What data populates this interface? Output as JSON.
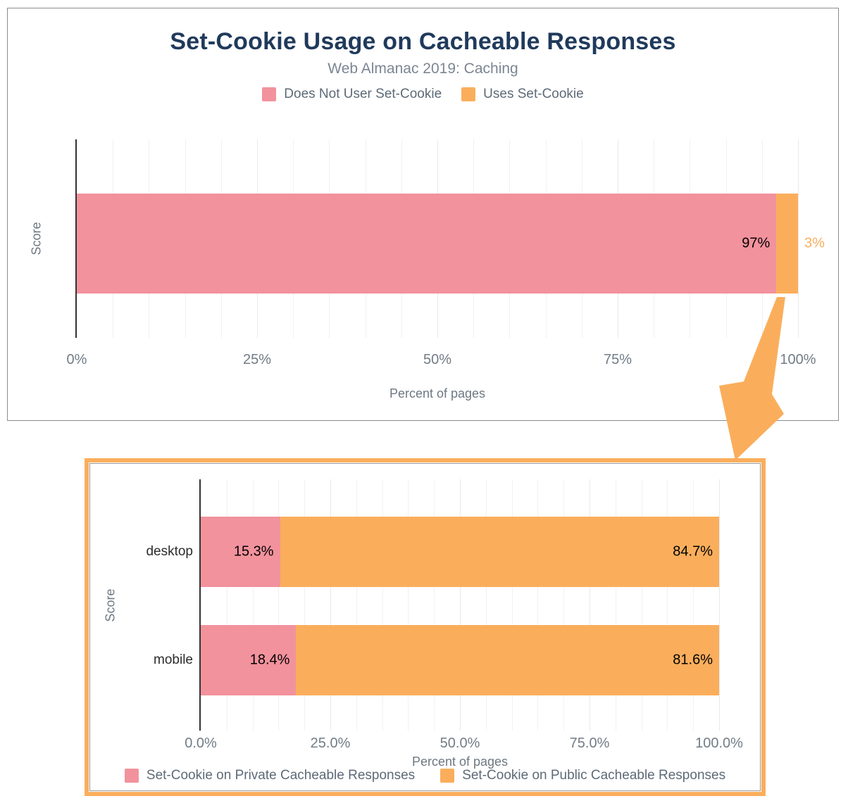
{
  "colors": {
    "pink": "#F2929D",
    "orange": "#FAAE5C",
    "title": "#203A5C",
    "subtitle": "#7B8693",
    "legend_text": "#5D6A77",
    "tick_text": "#717C86",
    "axis_title_text": "#6D7882",
    "value_label": "#000000",
    "category_label": "#2B2B2B",
    "axis_line": "#333333",
    "grid_minor": "#F1F1F1",
    "grid_major": "#E9E9E9",
    "panel_border": "#8C8C8C",
    "inner_border": "#999999",
    "highlight_border": "#FAAE5C",
    "arrow": "#FAAE5C"
  },
  "chart_data": [
    {
      "id": "set-cookie-usage-overall",
      "type": "bar",
      "orientation": "horizontal",
      "stacked": true,
      "title": "Set-Cookie Usage on Cacheable Responses",
      "subtitle": "Web Almanac 2019: Caching",
      "categories": [
        ""
      ],
      "series": [
        {
          "name": "Does Not User Set-Cookie",
          "color_key": "pink",
          "values": [
            97
          ],
          "labels": [
            "97%"
          ],
          "label_placement": "inside-end"
        },
        {
          "name": "Uses Set-Cookie",
          "color_key": "orange",
          "values": [
            3
          ],
          "labels": [
            "3%"
          ],
          "label_placement": "outside-end"
        }
      ],
      "xlabel": "Percent of pages",
      "ylabel": "Score",
      "xlim": [
        0,
        100
      ],
      "x_ticks": [
        {
          "value": 0,
          "label": "0%"
        },
        {
          "value": 25,
          "label": "25%"
        },
        {
          "value": 50,
          "label": "50%"
        },
        {
          "value": 75,
          "label": "75%"
        },
        {
          "value": 100,
          "label": "100%"
        }
      ],
      "grid_step": 5,
      "grid": "vertical-on",
      "legend_position": "top"
    },
    {
      "id": "set-cookie-cacheable-breakdown",
      "type": "bar",
      "orientation": "horizontal",
      "stacked": true,
      "title": "",
      "categories": [
        "desktop",
        "mobile"
      ],
      "series": [
        {
          "name": "Set-Cookie on Private Cacheable Responses",
          "color_key": "pink",
          "values": [
            15.3,
            18.4
          ],
          "labels": [
            "15.3%",
            "18.4%"
          ],
          "label_placement": "inside-end"
        },
        {
          "name": "Set-Cookie on Public Cacheable Responses",
          "color_key": "orange",
          "values": [
            84.7,
            81.6
          ],
          "labels": [
            "84.7%",
            "81.6%"
          ],
          "label_placement": "inside-end"
        }
      ],
      "xlabel": "Percent of pages",
      "ylabel": "Score",
      "xlim": [
        0,
        100
      ],
      "x_ticks": [
        {
          "value": 0,
          "label": "0.0%"
        },
        {
          "value": 25,
          "label": "25.0%"
        },
        {
          "value": 50,
          "label": "50.0%"
        },
        {
          "value": 75,
          "label": "75.0%"
        },
        {
          "value": 100,
          "label": "100.0%"
        }
      ],
      "grid_step": 5,
      "grid": "vertical-on",
      "legend_position": "bottom",
      "highlighted_by_arrow": true
    }
  ]
}
